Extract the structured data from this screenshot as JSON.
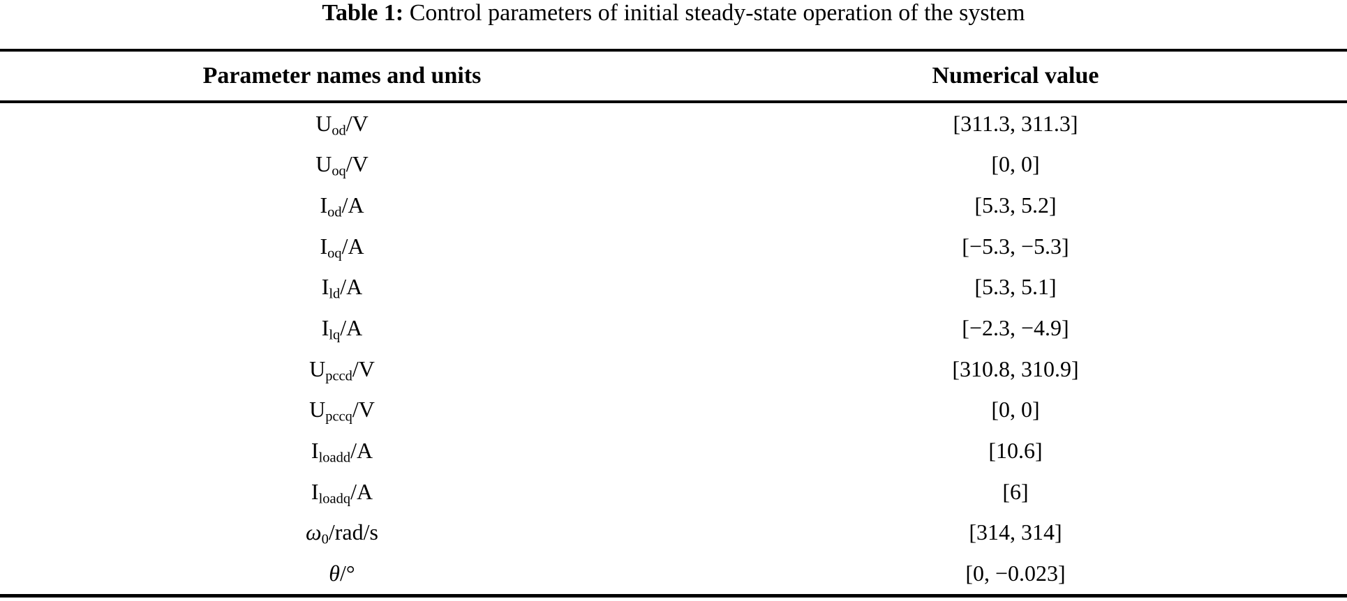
{
  "caption": {
    "label": "Table 1:",
    "text": " Control parameters of initial steady-state operation of the system"
  },
  "table": {
    "headers": [
      "Parameter names and units",
      "Numerical value"
    ],
    "rows": [
      {
        "symbol": "U",
        "subscript": "od",
        "unit": "/V",
        "value": "[311.3, 311.3]"
      },
      {
        "symbol": "U",
        "subscript": "oq",
        "unit": "/V",
        "value": "[0, 0]"
      },
      {
        "symbol": "I",
        "subscript": "od",
        "unit": "/A",
        "value": "[5.3, 5.2]"
      },
      {
        "symbol": "I",
        "subscript": "oq",
        "unit": "/A",
        "value": "[−5.3, −5.3]"
      },
      {
        "symbol": "I",
        "subscript": "ld",
        "unit": "/A",
        "value": "[5.3, 5.1]"
      },
      {
        "symbol": "I",
        "subscript": "lq",
        "unit": "/A",
        "value": "[−2.3, −4.9]"
      },
      {
        "symbol": "U",
        "subscript": "pccd",
        "unit": "/V",
        "value": "[310.8, 310.9]"
      },
      {
        "symbol": "U",
        "subscript": "pccq",
        "unit": "/V",
        "value": "[0, 0]"
      },
      {
        "symbol": "I",
        "subscript": "loadd",
        "unit": "/A",
        "value": "[10.6]"
      },
      {
        "symbol": "I",
        "subscript": "loadq",
        "unit": "/A",
        "value": "[6]"
      },
      {
        "symbol": "ω",
        "subscript": "0",
        "unit": "/rad/s",
        "value": "[314, 314]"
      },
      {
        "symbol": "θ",
        "subscript": "",
        "unit": "/°",
        "value": "[0, −0.023]"
      }
    ],
    "colors": {
      "text": "#000000",
      "rule": "#000000",
      "background": "#ffffff"
    }
  }
}
